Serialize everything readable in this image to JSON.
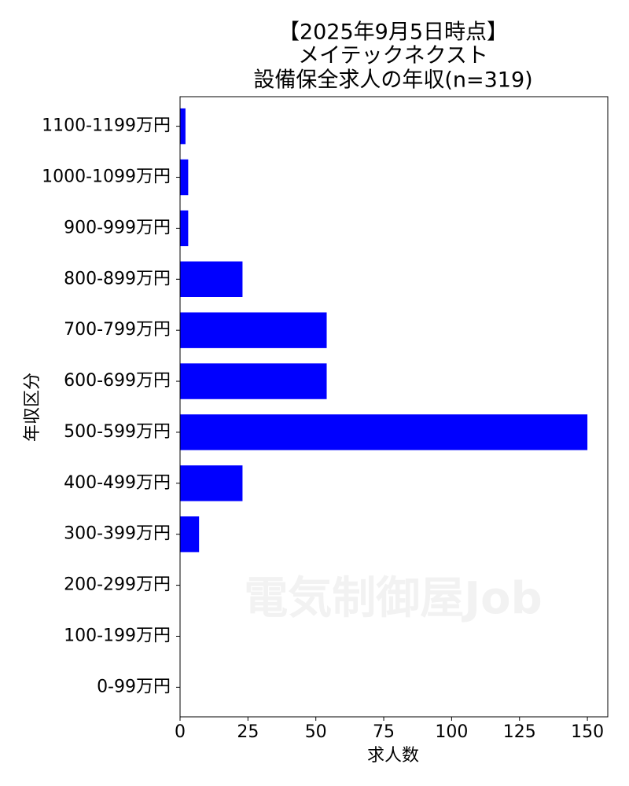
{
  "chart_data": {
    "type": "barh",
    "title": [
      "【2025年9月5日時点】",
      "メイテックネクスト",
      "設備保全求人の年収(n=319)"
    ],
    "xlabel": "求人数",
    "ylabel": "年収区分",
    "watermark": "電気制御屋Job",
    "categories": [
      "0-99万円",
      "100-199万円",
      "200-299万円",
      "300-399万円",
      "400-499万円",
      "500-599万円",
      "600-699万円",
      "700-799万円",
      "800-899万円",
      "900-999万円",
      "1000-1099万円",
      "1100-1199万円"
    ],
    "values": [
      0,
      0,
      0,
      7,
      23,
      150,
      54,
      54,
      23,
      3,
      3,
      2
    ],
    "color": "#0000ff",
    "xlim": [
      0,
      157.5
    ],
    "xticks": [
      0,
      25,
      50,
      75,
      100,
      125,
      150
    ]
  }
}
